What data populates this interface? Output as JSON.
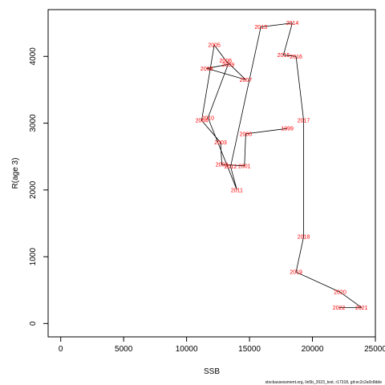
{
  "chart_data": {
    "type": "line",
    "xlabel": "SSB",
    "ylabel": "R(age 3)",
    "xlim": [
      -1000,
      25000
    ],
    "ylim": [
      -200,
      4700
    ],
    "x_ticks": [
      0,
      5000,
      10000,
      15000,
      20000,
      25000
    ],
    "y_ticks": [
      0,
      1000,
      2000,
      3000,
      4000
    ],
    "grid": false,
    "label_color": "#ff0000",
    "line_color": "#000000",
    "points": [
      {
        "label": "1999",
        "x": 18000,
        "y": 2920
      },
      {
        "label": "2000",
        "x": 14700,
        "y": 2840
      },
      {
        "label": "2001",
        "x": 14600,
        "y": 2360
      },
      {
        "label": "2002",
        "x": 12800,
        "y": 2380
      },
      {
        "label": "2003",
        "x": 12700,
        "y": 2710
      },
      {
        "label": "2004",
        "x": 11200,
        "y": 3040
      },
      {
        "label": "2005",
        "x": 12200,
        "y": 4170
      },
      {
        "label": "2006",
        "x": 13100,
        "y": 3940
      },
      {
        "label": "2007",
        "x": 14700,
        "y": 3650
      },
      {
        "label": "2008",
        "x": 11600,
        "y": 3820
      },
      {
        "label": "2009",
        "x": 13300,
        "y": 3880
      },
      {
        "label": "2010",
        "x": 11700,
        "y": 3080
      },
      {
        "label": "2011",
        "x": 14000,
        "y": 2000
      },
      {
        "label": "2012",
        "x": 13500,
        "y": 2350
      },
      {
        "label": "2013",
        "x": 15900,
        "y": 4440
      },
      {
        "label": "2014",
        "x": 18400,
        "y": 4500
      },
      {
        "label": "2015",
        "x": 17700,
        "y": 4020
      },
      {
        "label": "2016",
        "x": 18700,
        "y": 4000
      },
      {
        "label": "2017",
        "x": 19300,
        "y": 3040
      },
      {
        "label": "2018",
        "x": 19300,
        "y": 1300
      },
      {
        "label": "2019",
        "x": 18700,
        "y": 770
      },
      {
        "label": "2020",
        "x": 22200,
        "y": 470
      },
      {
        "label": "2021",
        "x": 23900,
        "y": 240
      },
      {
        "label": "2022",
        "x": 22100,
        "y": 240
      }
    ]
  },
  "caption": "stockassessment.org, lin5b_2023_test, r17318, git:ec2c2a0c8dde"
}
